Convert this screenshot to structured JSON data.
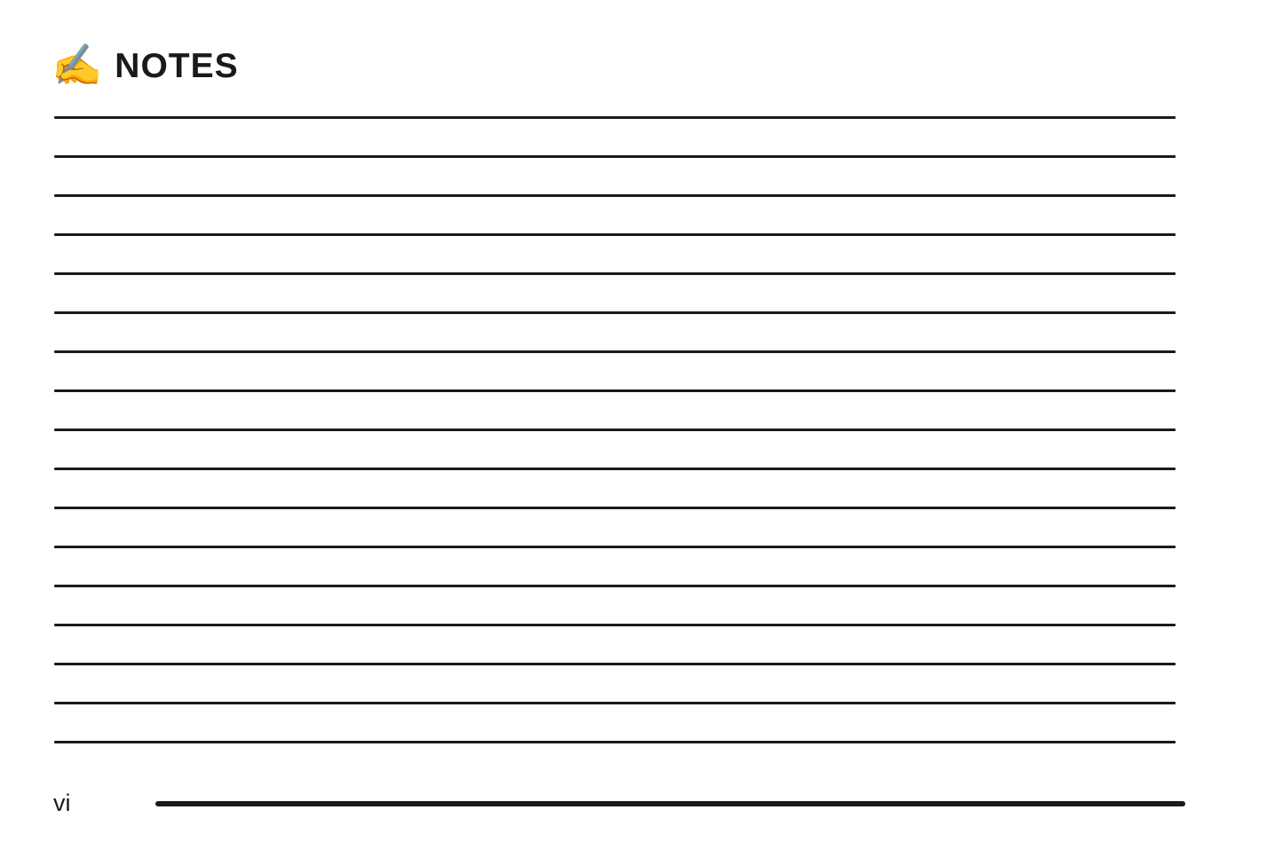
{
  "header": {
    "icon_glyph": "✍",
    "title": "NOTES"
  },
  "notes": {
    "line_count": 17
  },
  "footer": {
    "page_number": "vi"
  }
}
